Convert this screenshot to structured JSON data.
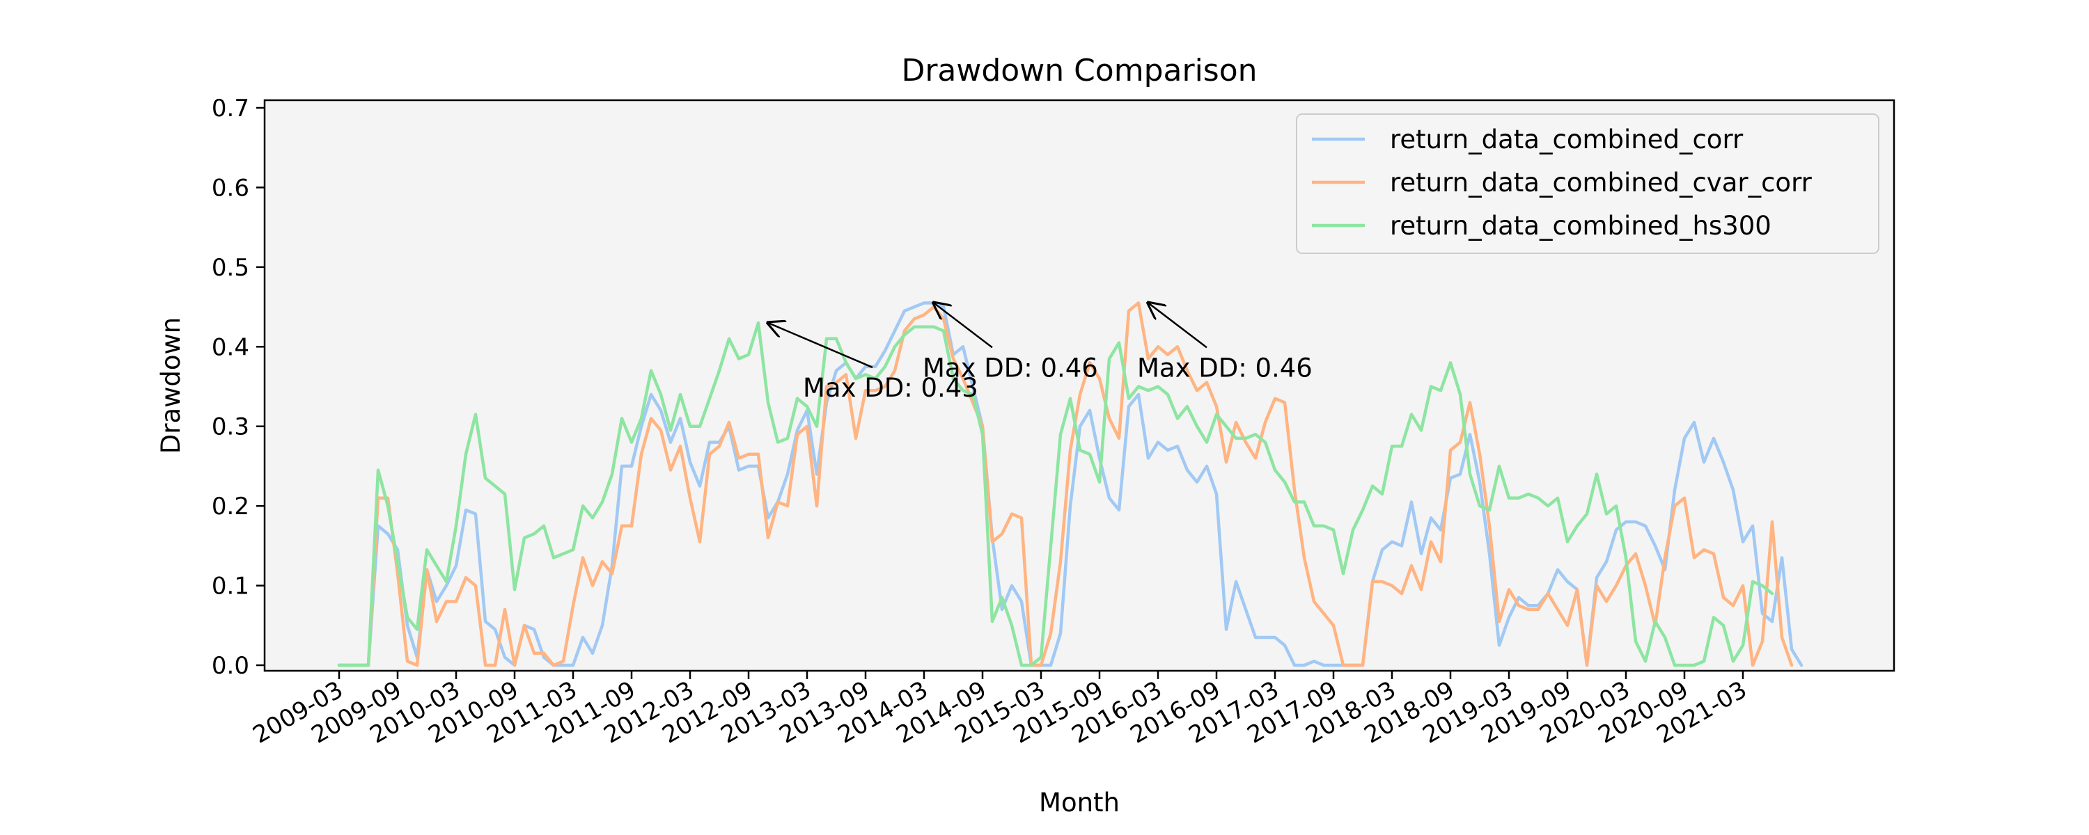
{
  "chart_data": {
    "type": "line",
    "title": "Drawdown Comparison",
    "xlabel": "Month",
    "ylabel": "Drawdown",
    "ylim": [
      0.0,
      0.7
    ],
    "yticks": [
      "0.0",
      "0.1",
      "0.2",
      "0.3",
      "0.4",
      "0.5",
      "0.6",
      "0.7"
    ],
    "xticks": [
      "2009-03",
      "2009-09",
      "2010-03",
      "2010-09",
      "2011-03",
      "2011-09",
      "2012-03",
      "2012-09",
      "2013-03",
      "2013-09",
      "2014-03",
      "2014-09",
      "2015-03",
      "2015-09",
      "2016-03",
      "2016-09",
      "2017-03",
      "2017-09",
      "2018-03",
      "2018-09",
      "2019-03",
      "2019-09",
      "2020-03",
      "2020-09",
      "2021-03"
    ],
    "x_start": "2009-03",
    "x_end": "2021-11",
    "grid": false,
    "background": "#f4f4f4",
    "legend_position": "upper right",
    "series": [
      {
        "name": "return_data_combined_corr",
        "color": "#a1c9f4",
        "values": [
          0.0,
          0.0,
          0.0,
          0.0,
          0.175,
          0.165,
          0.145,
          0.05,
          0.01,
          0.12,
          0.08,
          0.1,
          0.125,
          0.195,
          0.19,
          0.055,
          0.045,
          0.01,
          0.0,
          0.05,
          0.045,
          0.01,
          0.0,
          0.0,
          0.0,
          0.035,
          0.015,
          0.05,
          0.125,
          0.25,
          0.25,
          0.3,
          0.34,
          0.32,
          0.28,
          0.31,
          0.255,
          0.225,
          0.28,
          0.28,
          0.3,
          0.245,
          0.25,
          0.25,
          0.185,
          0.205,
          0.24,
          0.295,
          0.32,
          0.24,
          0.33,
          0.37,
          0.38,
          0.36,
          0.375,
          0.375,
          0.395,
          0.42,
          0.445,
          0.45,
          0.455,
          0.455,
          0.45,
          0.39,
          0.4,
          0.35,
          0.3,
          0.16,
          0.07,
          0.1,
          0.08,
          0.0,
          0.0,
          0.0,
          0.04,
          0.2,
          0.3,
          0.32,
          0.26,
          0.21,
          0.195,
          0.325,
          0.34,
          0.26,
          0.28,
          0.27,
          0.275,
          0.245,
          0.23,
          0.25,
          0.215,
          0.045,
          0.105,
          0.07,
          0.035,
          0.035,
          0.035,
          0.025,
          0.0,
          0.0,
          0.005,
          0.0,
          0.0,
          0.0,
          0.0,
          0.0,
          0.105,
          0.145,
          0.155,
          0.15,
          0.205,
          0.14,
          0.185,
          0.17,
          0.235,
          0.24,
          0.29,
          0.23,
          0.14,
          0.025,
          0.06,
          0.085,
          0.075,
          0.075,
          0.09,
          0.12,
          0.105,
          0.095,
          0.0,
          0.11,
          0.13,
          0.17,
          0.18,
          0.18,
          0.175,
          0.15,
          0.12,
          0.22,
          0.285,
          0.305,
          0.255,
          0.285,
          0.255,
          0.22,
          0.155,
          0.175,
          0.065,
          0.055,
          0.135,
          0.02,
          0.0
        ]
      },
      {
        "name": "return_data_combined_cvar_corr",
        "color": "#ffb482",
        "values": [
          0.0,
          0.0,
          0.0,
          0.0,
          0.21,
          0.21,
          0.115,
          0.005,
          0.0,
          0.12,
          0.055,
          0.08,
          0.08,
          0.11,
          0.1,
          0.0,
          0.0,
          0.07,
          0.0,
          0.05,
          0.015,
          0.015,
          0.0,
          0.005,
          0.075,
          0.135,
          0.1,
          0.13,
          0.115,
          0.175,
          0.175,
          0.265,
          0.31,
          0.295,
          0.245,
          0.275,
          0.21,
          0.155,
          0.265,
          0.275,
          0.305,
          0.26,
          0.265,
          0.265,
          0.16,
          0.205,
          0.2,
          0.29,
          0.3,
          0.2,
          0.35,
          0.355,
          0.365,
          0.285,
          0.345,
          0.345,
          0.35,
          0.37,
          0.42,
          0.435,
          0.44,
          0.45,
          0.435,
          0.385,
          0.36,
          0.33,
          0.3,
          0.155,
          0.165,
          0.19,
          0.185,
          0.0,
          0.0,
          0.04,
          0.13,
          0.27,
          0.34,
          0.38,
          0.36,
          0.31,
          0.285,
          0.445,
          0.455,
          0.385,
          0.4,
          0.39,
          0.4,
          0.37,
          0.345,
          0.355,
          0.325,
          0.255,
          0.305,
          0.28,
          0.26,
          0.305,
          0.335,
          0.33,
          0.22,
          0.135,
          0.08,
          0.065,
          0.05,
          0.0,
          0.0,
          0.0,
          0.105,
          0.105,
          0.1,
          0.09,
          0.125,
          0.095,
          0.155,
          0.13,
          0.27,
          0.28,
          0.33,
          0.265,
          0.175,
          0.055,
          0.095,
          0.075,
          0.07,
          0.07,
          0.09,
          0.07,
          0.05,
          0.095,
          0.0,
          0.1,
          0.08,
          0.1,
          0.125,
          0.14,
          0.1,
          0.05,
          0.135,
          0.2,
          0.21,
          0.135,
          0.145,
          0.14,
          0.085,
          0.075,
          0.1,
          0.0,
          0.03,
          0.18,
          0.035,
          0.0
        ]
      },
      {
        "name": "return_data_combined_hs300",
        "color": "#8de5a1",
        "values": [
          0.0,
          0.0,
          0.0,
          0.0,
          0.245,
          0.2,
          0.13,
          0.06,
          0.045,
          0.145,
          0.125,
          0.105,
          0.175,
          0.265,
          0.315,
          0.235,
          0.225,
          0.215,
          0.095,
          0.16,
          0.165,
          0.175,
          0.135,
          0.14,
          0.145,
          0.2,
          0.185,
          0.205,
          0.24,
          0.31,
          0.28,
          0.31,
          0.37,
          0.34,
          0.295,
          0.34,
          0.3,
          0.3,
          0.335,
          0.37,
          0.41,
          0.385,
          0.39,
          0.43,
          0.33,
          0.28,
          0.285,
          0.335,
          0.325,
          0.3,
          0.41,
          0.41,
          0.38,
          0.36,
          0.365,
          0.36,
          0.375,
          0.4,
          0.415,
          0.425,
          0.425,
          0.425,
          0.42,
          0.36,
          0.345,
          0.34,
          0.29,
          0.055,
          0.085,
          0.05,
          0.0,
          0.0,
          0.01,
          0.15,
          0.29,
          0.335,
          0.27,
          0.265,
          0.23,
          0.385,
          0.405,
          0.335,
          0.35,
          0.345,
          0.35,
          0.34,
          0.31,
          0.325,
          0.3,
          0.28,
          0.315,
          0.3,
          0.285,
          0.285,
          0.29,
          0.28,
          0.245,
          0.23,
          0.205,
          0.205,
          0.175,
          0.175,
          0.17,
          0.115,
          0.17,
          0.195,
          0.225,
          0.215,
          0.275,
          0.275,
          0.315,
          0.295,
          0.35,
          0.345,
          0.38,
          0.34,
          0.24,
          0.2,
          0.195,
          0.25,
          0.21,
          0.21,
          0.215,
          0.21,
          0.2,
          0.21,
          0.155,
          0.175,
          0.19,
          0.24,
          0.19,
          0.2,
          0.135,
          0.03,
          0.005,
          0.055,
          0.035,
          0.0,
          0.0,
          0.0,
          0.005,
          0.06,
          0.05,
          0.005,
          0.025,
          0.105,
          0.1,
          0.09
        ]
      }
    ],
    "annotations": [
      {
        "text": "Max DD: 0.43",
        "series": "return_data_combined_hs300",
        "x": "2012-11",
        "y": 0.43
      },
      {
        "text": "Max DD: 0.46",
        "series": "return_data_combined_corr",
        "x": "2014-04",
        "y": 0.455
      },
      {
        "text": "Max DD: 0.46",
        "series": "return_data_combined_cvar_corr",
        "x": "2016-02",
        "y": 0.455
      }
    ]
  }
}
